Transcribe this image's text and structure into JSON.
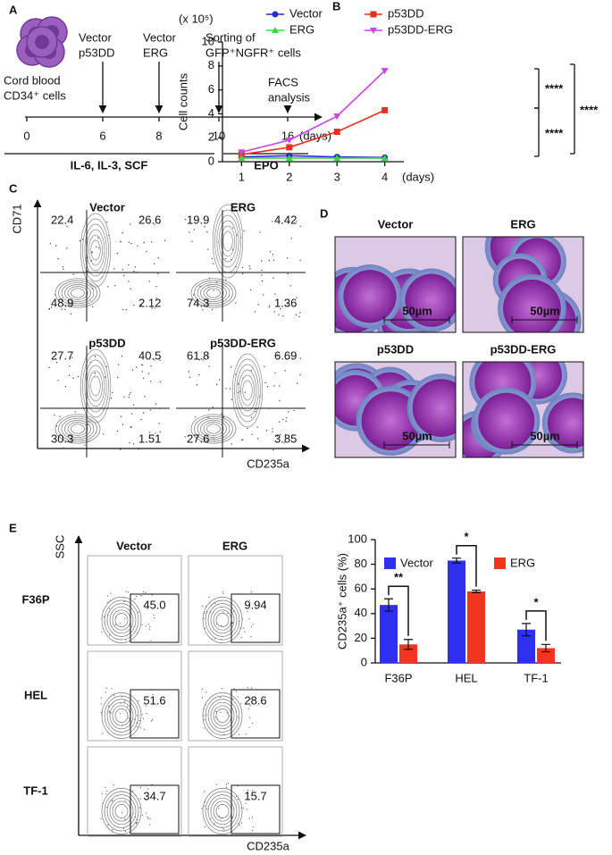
{
  "panel_a": {
    "label": "A",
    "start": [
      "Cord blood",
      "CD34⁺ cells"
    ],
    "steps": [
      {
        "text": [
          "Vector",
          "p53DD"
        ]
      },
      {
        "text": [
          "Vector",
          "ERG"
        ]
      },
      {
        "text": [
          "Sorting of",
          "GFP⁺NGFR⁺ cells"
        ]
      },
      {
        "text": [
          "FACS",
          "analysis"
        ]
      }
    ],
    "days": [
      "0",
      "6",
      "8",
      "10",
      "16"
    ],
    "days_unit": "(days)",
    "media": [
      "IL-6, IL-3, SCF",
      "EPO"
    ]
  },
  "chart_data": [
    {
      "type": "line",
      "panel_label": "B",
      "y_label": "Cell counts",
      "y_unit": "(x 10⁵)",
      "x_unit": "(days)",
      "x": [
        1,
        2,
        3,
        4
      ],
      "xlim": [
        0.6,
        4.4
      ],
      "xticks": [
        1,
        2,
        3,
        4
      ],
      "ylim": [
        0,
        10
      ],
      "yticks": [
        0,
        2,
        4,
        6,
        8,
        10
      ],
      "series": [
        {
          "name": "Vector",
          "color": "#2b2bd6",
          "marker": "circle",
          "values": [
            0.4,
            0.5,
            0.4,
            0.35
          ]
        },
        {
          "name": "p53DD",
          "color": "#e8301c",
          "marker": "square",
          "values": [
            0.6,
            1.2,
            2.5,
            4.3
          ]
        },
        {
          "name": "ERG",
          "color": "#3fd23f",
          "marker": "triangle-up",
          "values": [
            0.3,
            0.3,
            0.3,
            0.3
          ]
        },
        {
          "name": "p53DD-ERG",
          "color": "#c845e6",
          "marker": "triangle-down",
          "values": [
            0.8,
            1.8,
            3.8,
            7.6
          ]
        }
      ],
      "annotations": [
        "****",
        "****",
        "****"
      ]
    },
    {
      "type": "bar",
      "y_label": "CD235a⁺ cells (%)",
      "categories": [
        "F36P",
        "HEL",
        "TF-1"
      ],
      "ylim": [
        0,
        100
      ],
      "yticks": [
        0,
        20,
        40,
        60,
        80,
        100
      ],
      "series": [
        {
          "name": "Vector",
          "color": "#2f2ff0",
          "values": [
            47,
            83,
            27
          ],
          "errors": [
            5,
            2,
            5
          ]
        },
        {
          "name": "ERG",
          "color": "#f2361e",
          "values": [
            15,
            58,
            12
          ],
          "errors": [
            4,
            1,
            3
          ]
        }
      ],
      "annotations": [
        "**",
        "*",
        "*"
      ]
    }
  ],
  "panel_c": {
    "label": "C",
    "y_axis": "CD71",
    "x_axis": "CD235a",
    "plots": [
      {
        "title": "Vector",
        "quadrants": [
          "22.4",
          "26.6",
          "48.9",
          "2.12"
        ]
      },
      {
        "title": "ERG",
        "quadrants": [
          "19.9",
          "4.42",
          "74.3",
          "1.36"
        ]
      },
      {
        "title": "p53DD",
        "quadrants": [
          "27.7",
          "40.5",
          "30.3",
          "1.51"
        ]
      },
      {
        "title": "p53DD-ERG",
        "quadrants": [
          "61.8",
          "6.69",
          "27.6",
          "3.85"
        ]
      }
    ]
  },
  "panel_d": {
    "label": "D",
    "images": [
      {
        "title": "Vector",
        "scale_bar": "50µm"
      },
      {
        "title": "ERG",
        "scale_bar": "50µm"
      },
      {
        "title": "p53DD",
        "scale_bar": "50µm"
      },
      {
        "title": "p53DD-ERG",
        "scale_bar": "50µm"
      }
    ]
  },
  "panel_e": {
    "label": "E",
    "y_axis": "SSC",
    "x_axis": "CD235a",
    "columns": [
      "Vector",
      "ERG"
    ],
    "rows": [
      {
        "name": "F36P",
        "gates": [
          "45.0",
          "9.94"
        ]
      },
      {
        "name": "HEL",
        "gates": [
          "51.6",
          "28.6"
        ]
      },
      {
        "name": "TF-1",
        "gates": [
          "34.7",
          "15.7"
        ]
      }
    ]
  }
}
